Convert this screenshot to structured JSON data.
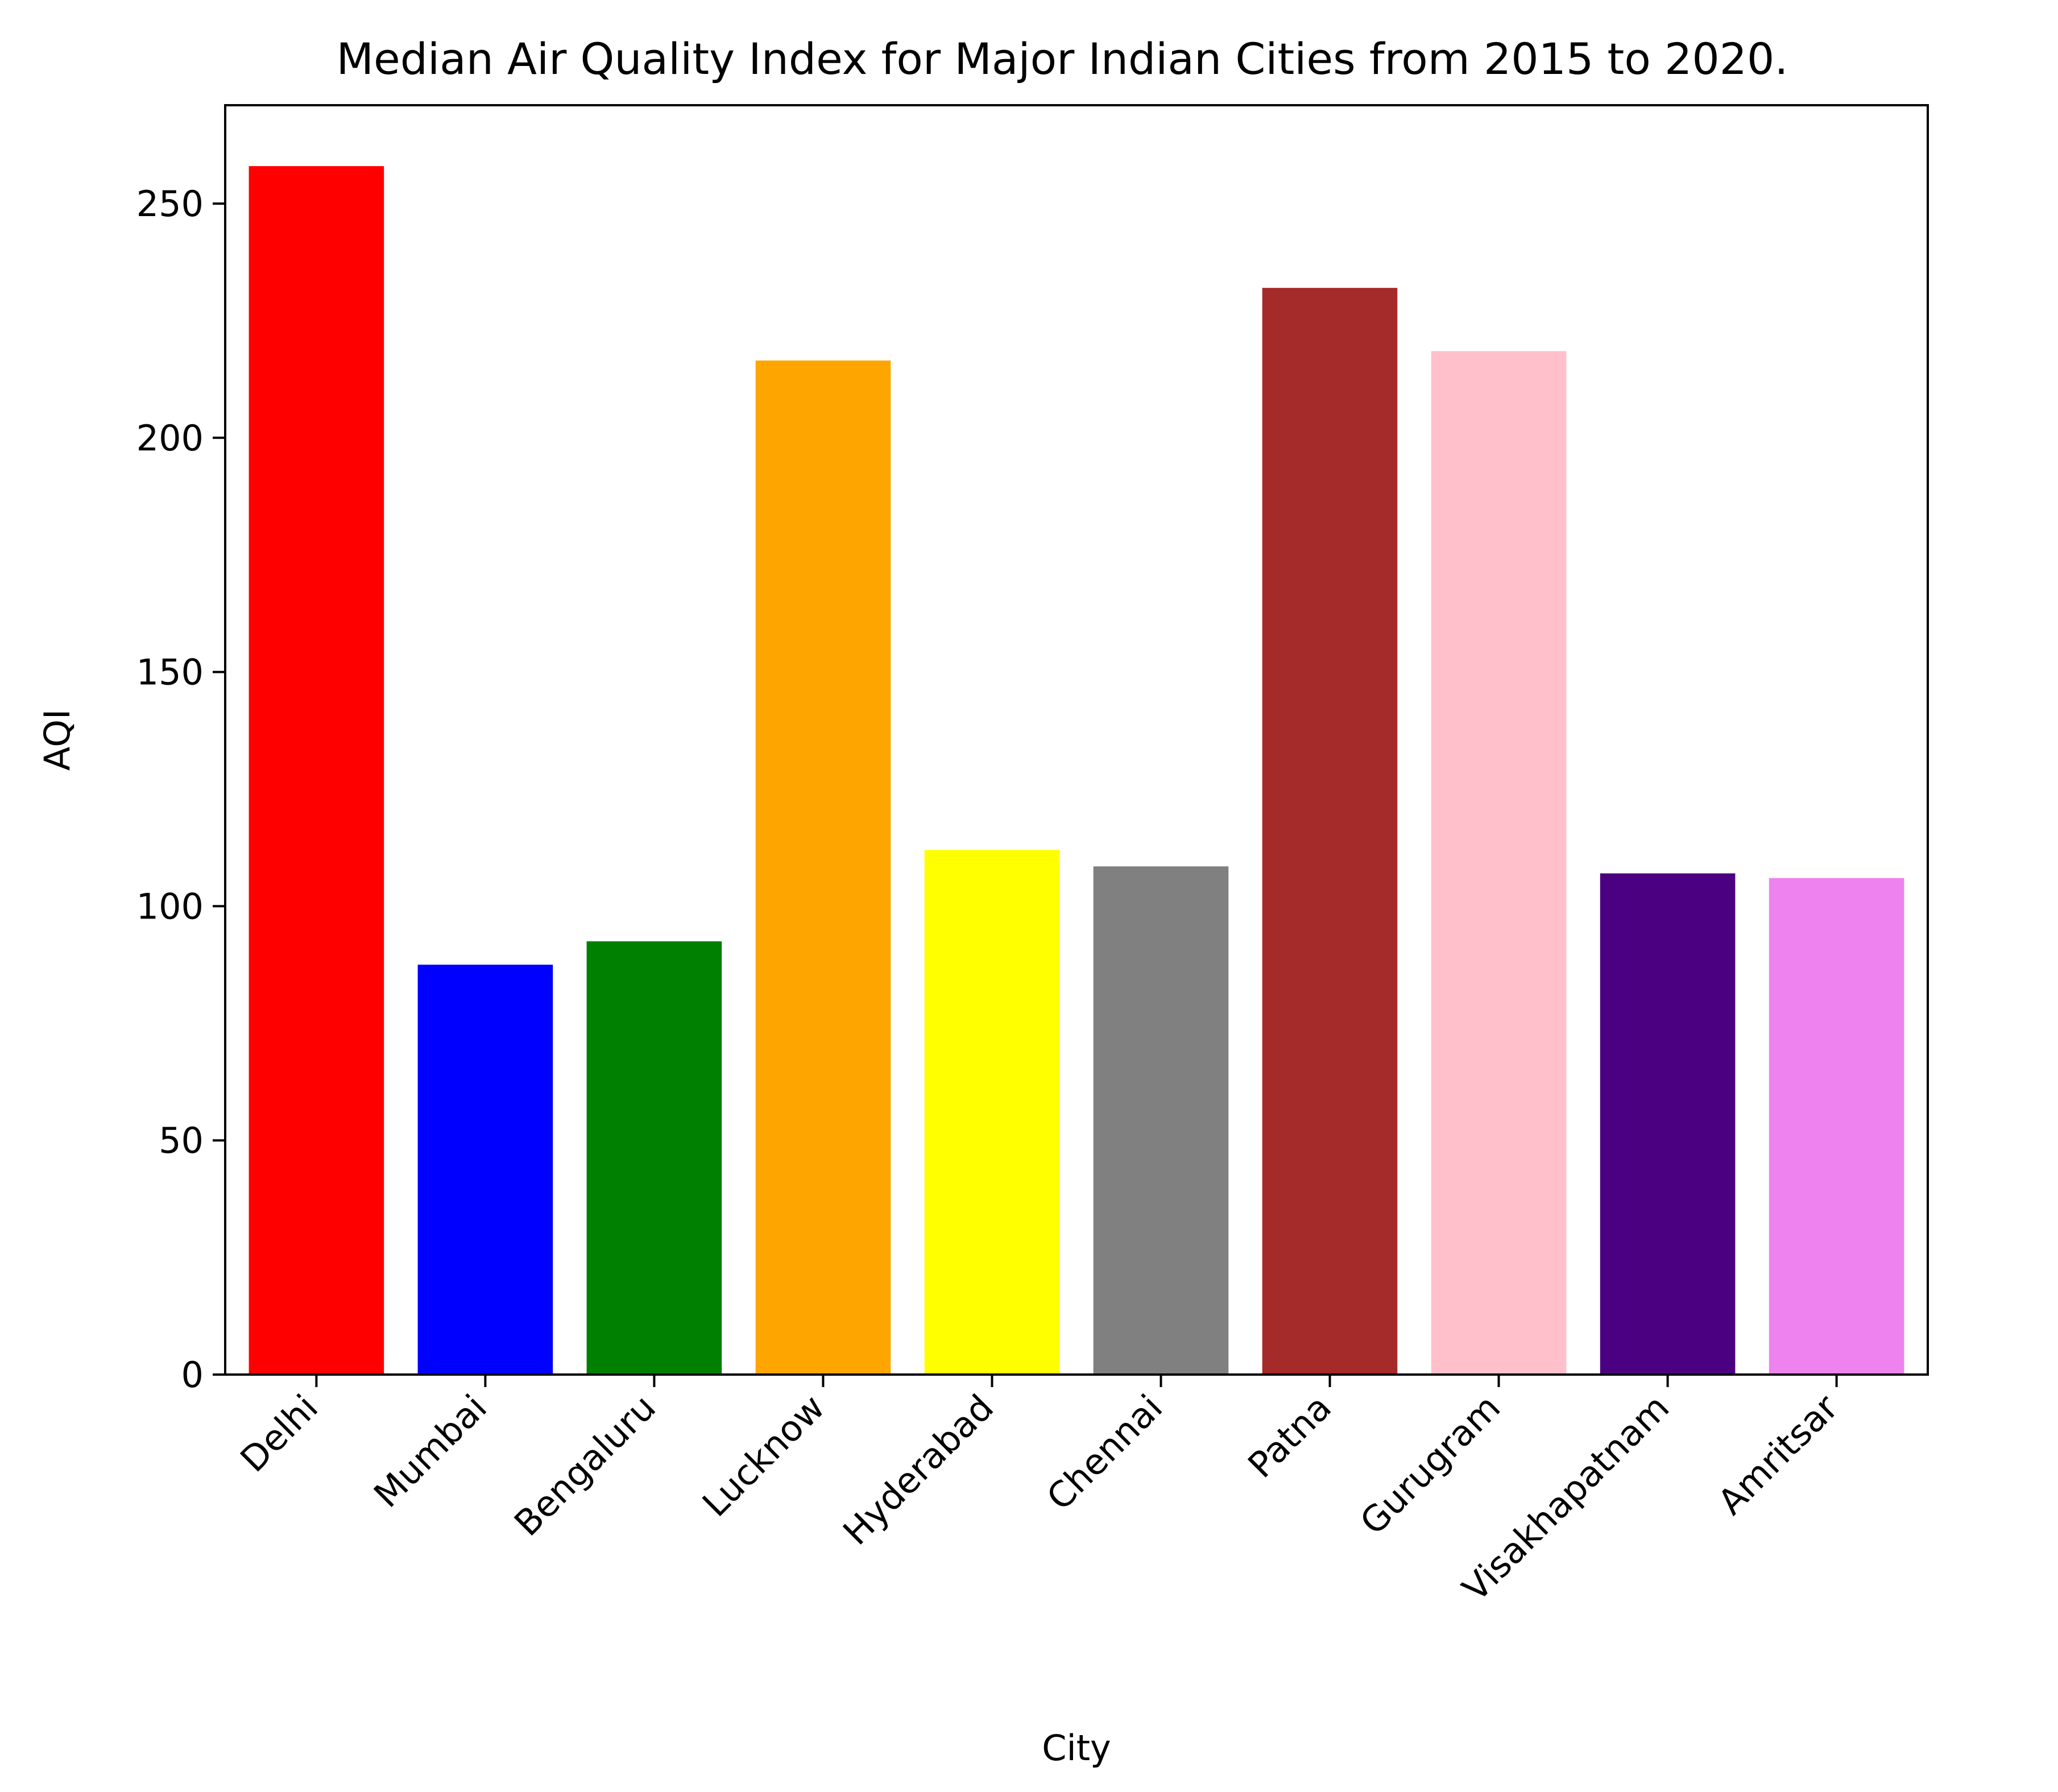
{
  "chart_data": {
    "type": "bar",
    "title": "Median Air Quality Index for Major Indian Cities from 2015 to 2020.",
    "xlabel": "City",
    "ylabel": "AQI",
    "ylim": [
      0,
      271
    ],
    "yticks": [
      0,
      50,
      100,
      150,
      200,
      250
    ],
    "grid": false,
    "categories": [
      "Delhi",
      "Mumbai",
      "Bengaluru",
      "Lucknow",
      "Hyderabad",
      "Chennai",
      "Patna",
      "Gurugram",
      "Visakhapatnam",
      "Amritsar"
    ],
    "values": [
      258,
      87.5,
      92.5,
      216.5,
      112,
      108.5,
      232,
      218.5,
      107,
      106
    ],
    "colors": [
      "#ff0000",
      "#0000ff",
      "#008000",
      "#ffa500",
      "#ffff00",
      "#808080",
      "#a52a2a",
      "#ffc0cb",
      "#4b0082",
      "#ee82ee"
    ]
  }
}
